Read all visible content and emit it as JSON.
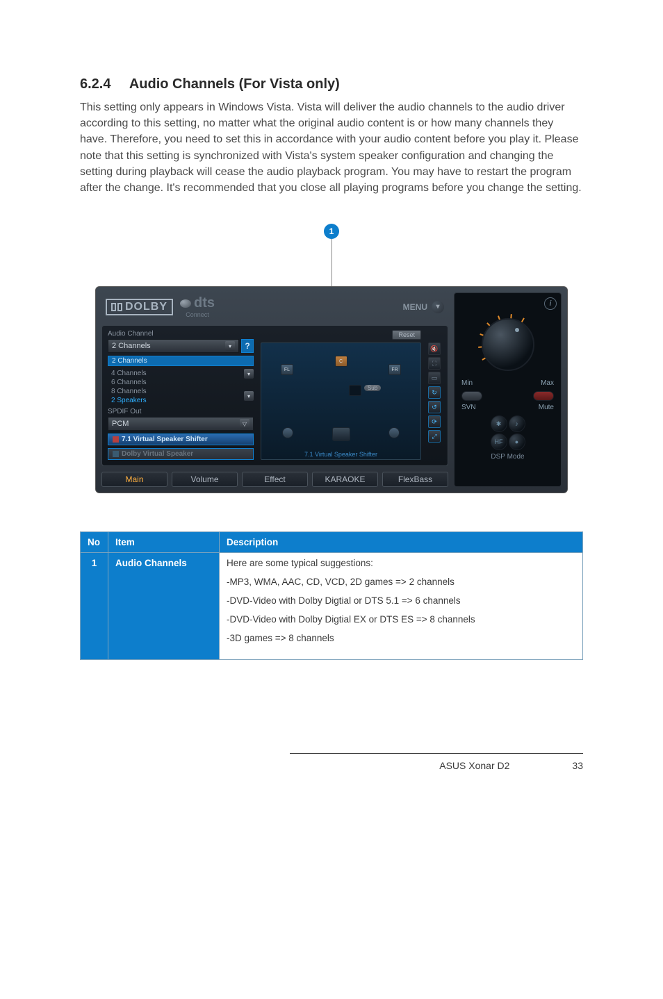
{
  "section": {
    "number": "6.2.4",
    "title": "Audio Channels (For Vista only)",
    "body": "This setting only appears in Windows Vista. Vista will deliver the audio channels to the audio driver according to this setting, no matter what the original audio content is or how many channels they have. Therefore, you need to set this in accordance with your audio content before you play it. Please note that this setting is synchronized with Vista's system speaker configuration and changing the setting during playback will cease the audio playback program. You may have to restart the program after the change. It's recommended that you close all playing programs before you change the setting."
  },
  "callout": {
    "badge": "1"
  },
  "screenshot": {
    "topbar": {
      "dolby": "DOLBY",
      "dts": "dts",
      "connect": "Connect",
      "menu": "MENU"
    },
    "left_panel": {
      "legend_audio": "Audio Channel",
      "combo_value": "2 Channels",
      "options": {
        "o1": "2 Channels",
        "o2": "4 Channels",
        "o3": "6 Channels",
        "o4": "8 Channels",
        "o5": "2 Speakers"
      },
      "legend_spdif": "SPDIF Out",
      "spdif_value": "PCM",
      "btn_virtual": "7.1 Virtual Speaker Shifter",
      "btn_dolbyvs": "Dolby Virtual Speaker"
    },
    "mid_panel": {
      "reset": "Reset",
      "fl": "FL",
      "c": "C",
      "fr": "FR",
      "sub": "Sub",
      "vshift": "7.1 Virtual Speaker Shifter"
    },
    "tabs": {
      "main": "Main",
      "volume": "Volume",
      "effect": "Effect",
      "karaoke": "KARAOKE",
      "flexbass": "FlexBass"
    },
    "right_panel": {
      "min": "Min",
      "max": "Max",
      "svn": "SVN",
      "mute": "Mute",
      "dsp": "DSP Mode"
    }
  },
  "table": {
    "colors": {
      "header_bg": "#0d7ecc",
      "header_fg": "#ffffff",
      "border": "#7fa4bd"
    },
    "headers": {
      "no": "No",
      "item": "Item",
      "desc": "Description"
    },
    "row": {
      "no": "1",
      "item": "Audio Channels",
      "d1": "Here are some typical suggestions:",
      "d2": "-MP3, WMA, AAC, CD, VCD, 2D games => 2 channels",
      "d3": "-DVD-Video with Dolby Digtial or DTS 5.1 => 6 channels",
      "d4": "-DVD-Video with Dolby Digtial EX or DTS ES => 8 channels",
      "d5": "-3D games => 8 channels"
    }
  },
  "footer": {
    "product": "ASUS Xonar D2",
    "page": "33"
  }
}
